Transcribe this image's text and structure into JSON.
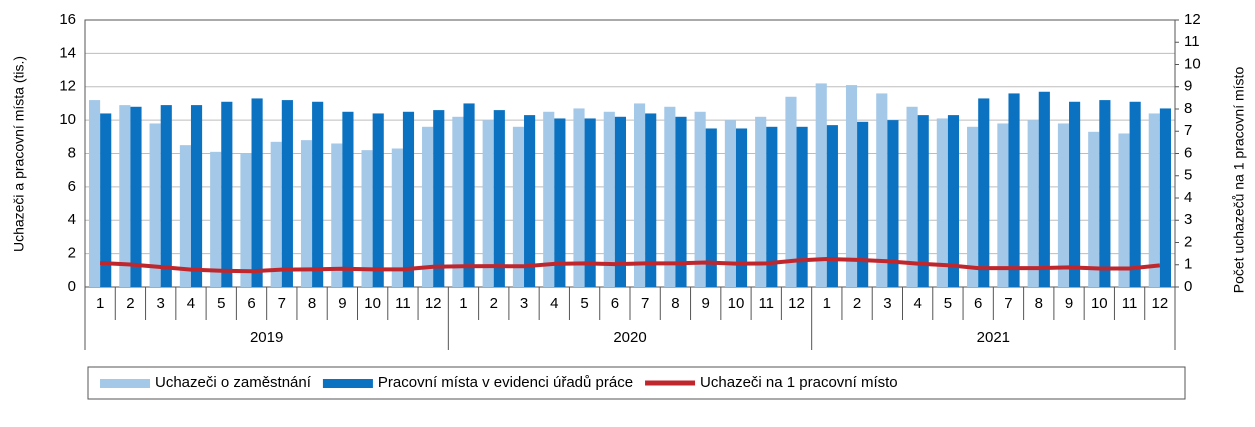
{
  "chart_data": {
    "type": "bar_line",
    "categories": [
      "1",
      "2",
      "3",
      "4",
      "5",
      "6",
      "7",
      "8",
      "9",
      "10",
      "11",
      "12",
      "1",
      "2",
      "3",
      "4",
      "5",
      "6",
      "7",
      "8",
      "9",
      "10",
      "11",
      "12",
      "1",
      "2",
      "3",
      "4",
      "5",
      "6",
      "7",
      "8",
      "9",
      "10",
      "11",
      "12"
    ],
    "x_groups": [
      "2019",
      "2020",
      "2021"
    ],
    "ylabel": "Uchazeči a pracovní místa (tis.)",
    "y2label": "Počet uchazečů  na 1 pracovní místo",
    "ylim": [
      0,
      16
    ],
    "yticks": [
      0,
      2,
      4,
      6,
      8,
      10,
      12,
      14,
      16
    ],
    "y2lim": [
      0,
      12
    ],
    "y2ticks": [
      0,
      1,
      2,
      3,
      4,
      5,
      6,
      7,
      8,
      9,
      10,
      11,
      12
    ],
    "grid": true,
    "series": [
      {
        "name": "Uchazeči o zaměstnání",
        "color": "#a4c8e8",
        "type": "bar",
        "values": [
          11.2,
          10.9,
          9.8,
          8.5,
          8.1,
          8.0,
          8.7,
          8.8,
          8.6,
          8.2,
          8.3,
          9.6,
          10.2,
          10.0,
          9.6,
          10.5,
          10.7,
          10.5,
          11.0,
          10.8,
          10.5,
          10.0,
          10.2,
          11.4,
          12.2,
          12.1,
          11.6,
          10.8,
          10.1,
          9.6,
          9.8,
          10.0,
          9.8,
          9.3,
          9.2,
          10.4
        ]
      },
      {
        "name": "Pracovní místa v evidenci úřadů práce",
        "color": "#0a72c0",
        "type": "bar",
        "values": [
          10.4,
          10.8,
          10.9,
          10.9,
          11.1,
          11.3,
          11.2,
          11.1,
          10.5,
          10.4,
          10.5,
          10.6,
          11.0,
          10.6,
          10.3,
          10.1,
          10.1,
          10.2,
          10.4,
          10.2,
          9.5,
          9.5,
          9.6,
          9.6,
          9.7,
          9.9,
          10.0,
          10.3,
          10.3,
          11.3,
          11.6,
          11.7,
          11.1,
          11.2,
          11.1,
          10.7
        ]
      },
      {
        "name": "Uchazeči na 1 pracovní místo",
        "color": "#c0272d",
        "type": "line",
        "axis": "y2",
        "values": [
          1.08,
          1.01,
          0.9,
          0.78,
          0.73,
          0.71,
          0.78,
          0.79,
          0.82,
          0.79,
          0.79,
          0.91,
          0.93,
          0.94,
          0.93,
          1.04,
          1.06,
          1.03,
          1.06,
          1.06,
          1.1,
          1.05,
          1.06,
          1.19,
          1.26,
          1.22,
          1.16,
          1.05,
          0.98,
          0.85,
          0.85,
          0.85,
          0.88,
          0.83,
          0.83,
          0.97
        ]
      }
    ]
  }
}
